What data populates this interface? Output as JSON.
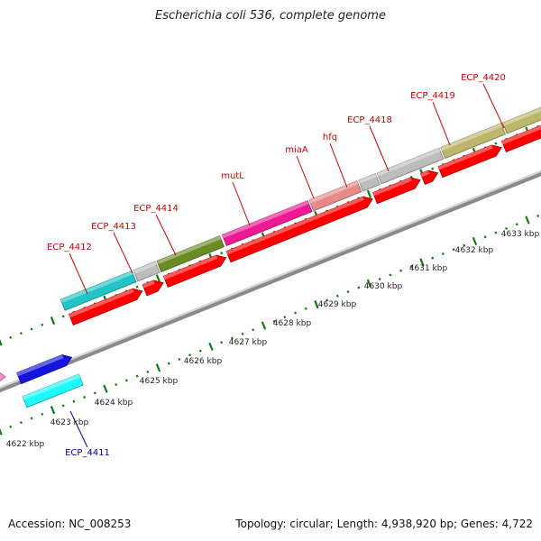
{
  "title": "Escherichia coli 536, complete genome",
  "footer": {
    "accession": "Accession: NC_008253",
    "summary": "Topology: circular; Length: 4,938,920 bp; Genes: 4,722"
  },
  "colors": {
    "gene_red": "#ff0000",
    "label_red": "#cc0000",
    "label_blue": "#0000aa",
    "ruler_green": "#117a11",
    "backbone_gray": "#8a8a8a"
  },
  "ruler_labels": [
    {
      "text": "4622 kbp"
    },
    {
      "text": "4623 kbp"
    },
    {
      "text": "4624 kbp"
    },
    {
      "text": "4625 kbp"
    },
    {
      "text": "4626 kbp"
    },
    {
      "text": "4627 kbp"
    },
    {
      "text": "4628 kbp"
    },
    {
      "text": "4629 kbp"
    },
    {
      "text": "4630 kbp"
    },
    {
      "text": "4631 kbp"
    },
    {
      "text": "4632 kbp"
    },
    {
      "text": "4633 kbp"
    }
  ],
  "gene_labels": [
    {
      "text": "ECP_4412",
      "color": "#cc0000"
    },
    {
      "text": "ECP_4413",
      "color": "#cc0000"
    },
    {
      "text": "ECP_4414",
      "color": "#cc0000"
    },
    {
      "text": "mutL",
      "color": "#cc0000"
    },
    {
      "text": "miaA",
      "color": "#cc0000"
    },
    {
      "text": "hfq",
      "color": "#cc0000"
    },
    {
      "text": "ECP_4418",
      "color": "#cc0000"
    },
    {
      "text": "ECP_4419",
      "color": "#cc0000"
    },
    {
      "text": "ECP_4420",
      "color": "#cc0000"
    },
    {
      "text": "ECP_4411",
      "color": "#0000aa"
    }
  ],
  "cog_colors": [
    "#22c4c8",
    "#bdbdbd",
    "#6b8b23",
    "#ee1a94",
    "#e88a8a",
    "#bdbdbd",
    "#bdbdbd",
    "#bdb76b",
    "#bdb76b",
    "#1414dd",
    "#1efafa",
    "#ff8ad8"
  ]
}
